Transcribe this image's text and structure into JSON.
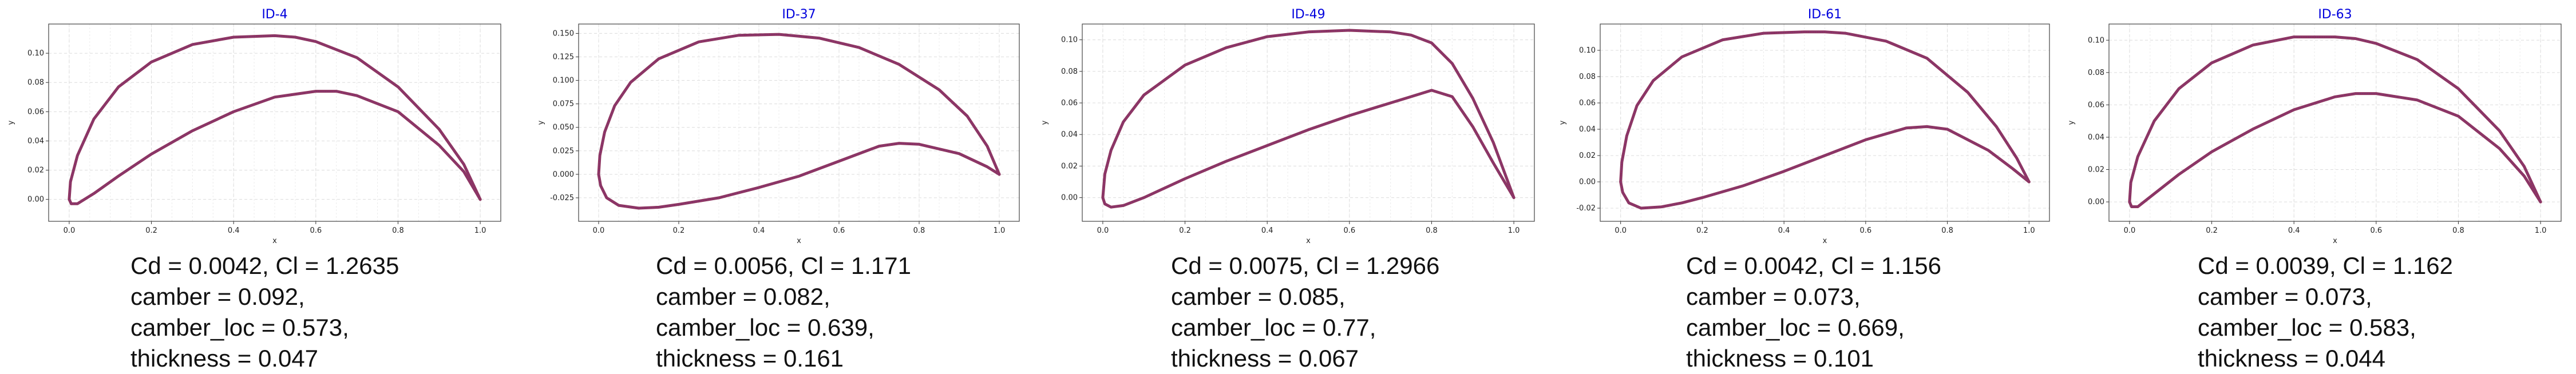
{
  "chart_data": [
    {
      "type": "line",
      "title": "ID-4",
      "xlabel": "x",
      "ylabel": "y",
      "xlim": [
        -0.05,
        1.05
      ],
      "ylim": [
        -0.015,
        0.12
      ],
      "xticks": [
        "0.0",
        "0.2",
        "0.4",
        "0.6",
        "0.8",
        "1.0"
      ],
      "yticks": [
        "0.00",
        "0.02",
        "0.04",
        "0.06",
        "0.08",
        "0.10"
      ],
      "yvals": [
        0,
        0.02,
        0.04,
        0.06,
        0.08,
        0.1
      ],
      "grid": true,
      "series": [
        {
          "x": [
            0.0,
            0.003,
            0.02,
            0.06,
            0.12,
            0.2,
            0.3,
            0.4,
            0.5,
            0.55,
            0.6,
            0.7,
            0.8,
            0.9,
            0.96,
            1.0
          ],
          "y": [
            0.0,
            0.012,
            0.03,
            0.055,
            0.077,
            0.094,
            0.106,
            0.111,
            0.112,
            0.111,
            0.108,
            0.097,
            0.077,
            0.048,
            0.024,
            0.0
          ]
        },
        {
          "x": [
            0.0,
            0.005,
            0.02,
            0.06,
            0.12,
            0.2,
            0.3,
            0.4,
            0.5,
            0.6,
            0.65,
            0.7,
            0.8,
            0.9,
            0.96,
            1.0
          ],
          "y": [
            0.0,
            -0.003,
            -0.003,
            0.004,
            0.016,
            0.031,
            0.047,
            0.06,
            0.07,
            0.074,
            0.074,
            0.071,
            0.06,
            0.037,
            0.019,
            0.0
          ]
        }
      ],
      "caption": [
        "Cd = 0.0042, Cl = 1.2635",
        "camber = 0.092,",
        "camber_loc = 0.573,",
        "thickness = 0.047"
      ]
    },
    {
      "type": "line",
      "title": "ID-37",
      "xlabel": "x",
      "ylabel": "y",
      "xlim": [
        -0.05,
        1.05
      ],
      "ylim": [
        -0.05,
        0.16
      ],
      "xticks": [
        "0.0",
        "0.2",
        "0.4",
        "0.6",
        "0.8",
        "1.0"
      ],
      "yticks": [
        "-0.025",
        "0.000",
        "0.025",
        "0.050",
        "0.075",
        "0.100",
        "0.125",
        "0.150"
      ],
      "yvals": [
        -0.025,
        0,
        0.025,
        0.05,
        0.075,
        0.1,
        0.125,
        0.15
      ],
      "grid": true,
      "series": [
        {
          "x": [
            0.0,
            0.003,
            0.015,
            0.04,
            0.08,
            0.15,
            0.25,
            0.35,
            0.45,
            0.55,
            0.65,
            0.75,
            0.85,
            0.92,
            0.97,
            1.0
          ],
          "y": [
            0.0,
            0.02,
            0.045,
            0.073,
            0.098,
            0.123,
            0.141,
            0.148,
            0.149,
            0.145,
            0.135,
            0.117,
            0.09,
            0.062,
            0.03,
            0.0
          ]
        },
        {
          "x": [
            0.0,
            0.005,
            0.02,
            0.05,
            0.1,
            0.15,
            0.2,
            0.3,
            0.4,
            0.5,
            0.6,
            0.7,
            0.75,
            0.8,
            0.9,
            0.97,
            1.0
          ],
          "y": [
            0.0,
            -0.012,
            -0.025,
            -0.033,
            -0.036,
            -0.035,
            -0.032,
            -0.025,
            -0.014,
            -0.002,
            0.014,
            0.03,
            0.033,
            0.032,
            0.022,
            0.008,
            0.0
          ]
        }
      ],
      "caption": [
        "Cd = 0.0056, Cl = 1.171",
        "camber = 0.082,",
        "camber_loc = 0.639,",
        "thickness = 0.161"
      ]
    },
    {
      "type": "line",
      "title": "ID-49",
      "xlabel": "x",
      "ylabel": "y",
      "xlim": [
        -0.05,
        1.05
      ],
      "ylim": [
        -0.015,
        0.11
      ],
      "xticks": [
        "0.0",
        "0.2",
        "0.4",
        "0.6",
        "0.8",
        "1.0"
      ],
      "yticks": [
        "0.00",
        "0.02",
        "0.04",
        "0.06",
        "0.08",
        "0.10"
      ],
      "yvals": [
        0,
        0.02,
        0.04,
        0.06,
        0.08,
        0.1
      ],
      "grid": true,
      "series": [
        {
          "x": [
            0.0,
            0.005,
            0.02,
            0.05,
            0.1,
            0.2,
            0.3,
            0.4,
            0.5,
            0.6,
            0.7,
            0.75,
            0.8,
            0.85,
            0.9,
            0.95,
            1.0
          ],
          "y": [
            0.0,
            0.015,
            0.03,
            0.048,
            0.065,
            0.084,
            0.095,
            0.102,
            0.105,
            0.106,
            0.105,
            0.103,
            0.098,
            0.085,
            0.063,
            0.035,
            0.0
          ]
        },
        {
          "x": [
            0.0,
            0.005,
            0.02,
            0.05,
            0.1,
            0.2,
            0.3,
            0.4,
            0.5,
            0.6,
            0.7,
            0.75,
            0.8,
            0.85,
            0.9,
            0.95,
            1.0
          ],
          "y": [
            0.0,
            -0.004,
            -0.006,
            -0.005,
            0.0,
            0.012,
            0.023,
            0.033,
            0.043,
            0.052,
            0.06,
            0.064,
            0.068,
            0.064,
            0.045,
            0.022,
            0.0
          ]
        }
      ],
      "caption": [
        "Cd = 0.0075, Cl = 1.2966",
        "camber = 0.085,",
        "camber_loc = 0.77,",
        "thickness = 0.067"
      ]
    },
    {
      "type": "line",
      "title": "ID-61",
      "xlabel": "x",
      "ylabel": "y",
      "xlim": [
        -0.05,
        1.05
      ],
      "ylim": [
        -0.03,
        0.12
      ],
      "xticks": [
        "0.0",
        "0.2",
        "0.4",
        "0.6",
        "0.8",
        "1.0"
      ],
      "yticks": [
        "-0.02",
        "0.00",
        "0.02",
        "0.04",
        "0.06",
        "0.08",
        "0.10"
      ],
      "yvals": [
        -0.02,
        0,
        0.02,
        0.04,
        0.06,
        0.08,
        0.1
      ],
      "grid": true,
      "series": [
        {
          "x": [
            0.0,
            0.003,
            0.015,
            0.04,
            0.08,
            0.15,
            0.25,
            0.35,
            0.45,
            0.5,
            0.55,
            0.65,
            0.75,
            0.85,
            0.92,
            0.97,
            1.0
          ],
          "y": [
            0.0,
            0.015,
            0.035,
            0.058,
            0.077,
            0.095,
            0.108,
            0.113,
            0.114,
            0.114,
            0.113,
            0.107,
            0.094,
            0.068,
            0.042,
            0.018,
            0.0
          ]
        },
        {
          "x": [
            0.0,
            0.005,
            0.02,
            0.05,
            0.1,
            0.15,
            0.2,
            0.3,
            0.4,
            0.5,
            0.6,
            0.7,
            0.75,
            0.8,
            0.9,
            0.96,
            1.0
          ],
          "y": [
            0.0,
            -0.008,
            -0.016,
            -0.02,
            -0.019,
            -0.016,
            -0.012,
            -0.003,
            0.008,
            0.02,
            0.032,
            0.041,
            0.042,
            0.04,
            0.024,
            0.01,
            0.0
          ]
        }
      ],
      "caption": [
        "Cd = 0.0042, Cl = 1.156",
        "camber = 0.073,",
        "camber_loc = 0.669,",
        "thickness = 0.101"
      ]
    },
    {
      "type": "line",
      "title": "ID-63",
      "xlabel": "x",
      "ylabel": "y",
      "xlim": [
        -0.05,
        1.05
      ],
      "ylim": [
        -0.012,
        0.11
      ],
      "xticks": [
        "0.0",
        "0.2",
        "0.4",
        "0.6",
        "0.8",
        "1.0"
      ],
      "yticks": [
        "0.00",
        "0.02",
        "0.04",
        "0.06",
        "0.08",
        "0.10"
      ],
      "yvals": [
        0,
        0.02,
        0.04,
        0.06,
        0.08,
        0.1
      ],
      "grid": true,
      "series": [
        {
          "x": [
            0.0,
            0.003,
            0.02,
            0.06,
            0.12,
            0.2,
            0.3,
            0.4,
            0.5,
            0.55,
            0.6,
            0.7,
            0.8,
            0.9,
            0.96,
            1.0
          ],
          "y": [
            0.0,
            0.012,
            0.028,
            0.05,
            0.07,
            0.086,
            0.097,
            0.102,
            0.102,
            0.101,
            0.098,
            0.088,
            0.07,
            0.044,
            0.022,
            0.0
          ]
        },
        {
          "x": [
            0.0,
            0.005,
            0.02,
            0.06,
            0.12,
            0.2,
            0.3,
            0.4,
            0.5,
            0.55,
            0.6,
            0.7,
            0.8,
            0.9,
            0.96,
            1.0
          ],
          "y": [
            0.0,
            -0.003,
            -0.003,
            0.005,
            0.017,
            0.031,
            0.045,
            0.057,
            0.065,
            0.067,
            0.067,
            0.063,
            0.053,
            0.033,
            0.016,
            0.0
          ]
        }
      ],
      "caption": [
        "Cd = 0.0039, Cl = 1.162",
        "camber = 0.073,",
        "camber_loc = 0.583,",
        "thickness = 0.044"
      ]
    }
  ],
  "colors": {
    "line": "#8e3560",
    "marker": "#6e3aa8",
    "title": "#0000dd",
    "grid": "#dcdcdc"
  }
}
